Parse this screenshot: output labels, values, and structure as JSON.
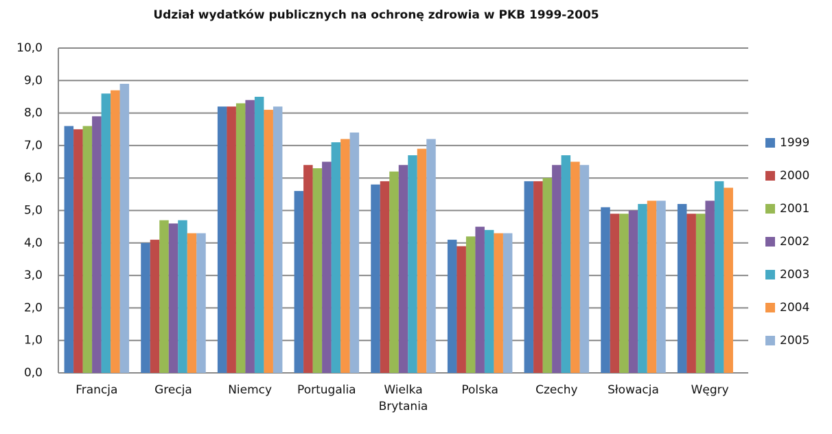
{
  "chart_data": {
    "type": "bar",
    "title": "Udział wydatków publicznych na ochronę zdrowia w PKB 1999-2005",
    "categories": [
      "Francja",
      "Grecja",
      "Niemcy",
      "Portugalia",
      "Wielka Brytania",
      "Polska",
      "Czechy",
      "Słowacja",
      "Węgry"
    ],
    "series": [
      {
        "name": "1999",
        "color": "#4a7ebb",
        "values": [
          7.6,
          4.0,
          8.2,
          5.6,
          5.8,
          4.1,
          5.9,
          5.1,
          5.2
        ]
      },
      {
        "name": "2000",
        "color": "#be4b48",
        "values": [
          7.5,
          4.1,
          8.2,
          6.4,
          5.9,
          3.9,
          5.9,
          4.9,
          4.9
        ]
      },
      {
        "name": "2001",
        "color": "#98b954",
        "values": [
          7.6,
          4.7,
          8.3,
          6.3,
          6.2,
          4.2,
          6.0,
          4.9,
          4.9
        ]
      },
      {
        "name": "2002",
        "color": "#7d60a0",
        "values": [
          7.9,
          4.6,
          8.4,
          6.5,
          6.4,
          4.5,
          6.4,
          5.0,
          5.3
        ]
      },
      {
        "name": "2003",
        "color": "#46aac5",
        "values": [
          8.6,
          4.7,
          8.5,
          7.1,
          6.7,
          4.4,
          6.7,
          5.2,
          5.9
        ]
      },
      {
        "name": "2004",
        "color": "#f79646",
        "values": [
          8.7,
          4.3,
          8.1,
          7.2,
          6.9,
          4.3,
          6.5,
          5.3,
          5.7
        ]
      },
      {
        "name": "2005",
        "color": "#95b3d7",
        "values": [
          8.9,
          4.3,
          8.2,
          7.4,
          7.2,
          4.3,
          6.4,
          5.3,
          null
        ]
      }
    ],
    "ylim": [
      0,
      10
    ],
    "yticks": [
      {
        "value": 0,
        "label": "0,0"
      },
      {
        "value": 1,
        "label": "1,0"
      },
      {
        "value": 2,
        "label": "2,0"
      },
      {
        "value": 3,
        "label": "3,0"
      },
      {
        "value": 4,
        "label": "4,0"
      },
      {
        "value": 5,
        "label": "5,0"
      },
      {
        "value": 6,
        "label": "6,0"
      },
      {
        "value": 7,
        "label": "7,0"
      },
      {
        "value": 8,
        "label": "8,0"
      },
      {
        "value": 9,
        "label": "9,0"
      },
      {
        "value": 10,
        "label": "10,0"
      }
    ],
    "grid": true,
    "legend": "right"
  }
}
